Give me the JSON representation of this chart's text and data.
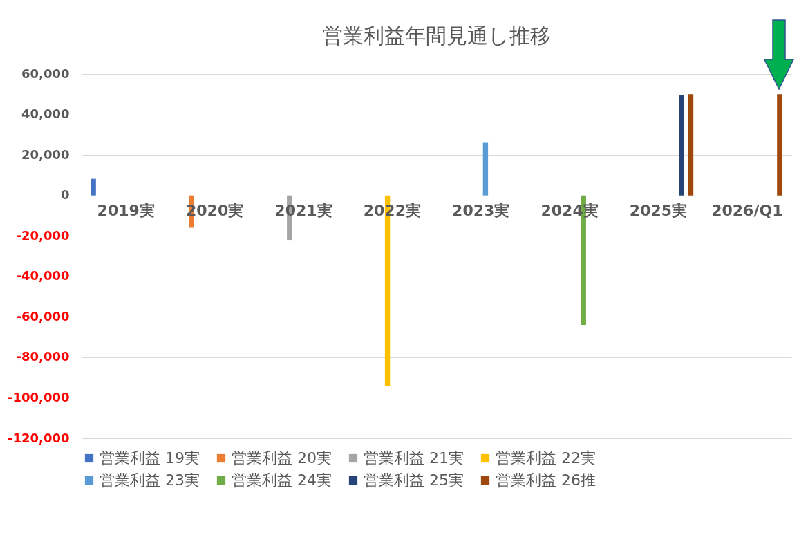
{
  "chart_data": {
    "type": "bar",
    "title": "営業利益年間見通し推移",
    "categories": [
      "2019実",
      "2020実",
      "2021実",
      "2022実",
      "2023実",
      "2024実",
      "2025実",
      "2026/Q1"
    ],
    "series": [
      {
        "name": "営業利益 19実",
        "color": "#4472c4",
        "values": [
          8200,
          null,
          null,
          null,
          null,
          null,
          null,
          null
        ]
      },
      {
        "name": "営業利益 20実",
        "color": "#ed7d31",
        "values": [
          null,
          -16000,
          null,
          null,
          null,
          null,
          null,
          null
        ]
      },
      {
        "name": "営業利益 21実",
        "color": "#a5a5a5",
        "values": [
          null,
          null,
          -22000,
          null,
          null,
          null,
          null,
          null
        ]
      },
      {
        "name": "営業利益 22実",
        "color": "#ffc000",
        "values": [
          null,
          null,
          null,
          -94000,
          null,
          null,
          null,
          null
        ]
      },
      {
        "name": "営業利益 23実",
        "color": "#5b9bd5",
        "values": [
          null,
          null,
          null,
          null,
          26000,
          null,
          null,
          null
        ]
      },
      {
        "name": "営業利益 24実",
        "color": "#70ad47",
        "values": [
          null,
          null,
          null,
          null,
          null,
          -64000,
          null,
          null
        ]
      },
      {
        "name": "営業利益 25実",
        "color": "#264478",
        "values": [
          null,
          null,
          null,
          null,
          null,
          null,
          49500,
          null
        ]
      },
      {
        "name": "営業利益 26推",
        "color": "#9e480e",
        "values": [
          null,
          null,
          null,
          null,
          null,
          null,
          50000,
          50000
        ]
      }
    ],
    "ylim": [
      -120000,
      60000
    ],
    "yticks": [
      {
        "value": -120000,
        "label": "-120,000"
      },
      {
        "value": -100000,
        "label": "-100,000"
      },
      {
        "value": -80000,
        "label": "-80,000"
      },
      {
        "value": -60000,
        "label": "-60,000"
      },
      {
        "value": -40000,
        "label": "-40,000"
      },
      {
        "value": -20000,
        "label": "-20,000"
      },
      0,
      {
        "value": 20000,
        "label": "20,000"
      },
      {
        "value": 40000,
        "label": "40,000"
      },
      {
        "value": 60000,
        "label": "60,000"
      }
    ],
    "grid": "y",
    "legend": "bottom"
  }
}
